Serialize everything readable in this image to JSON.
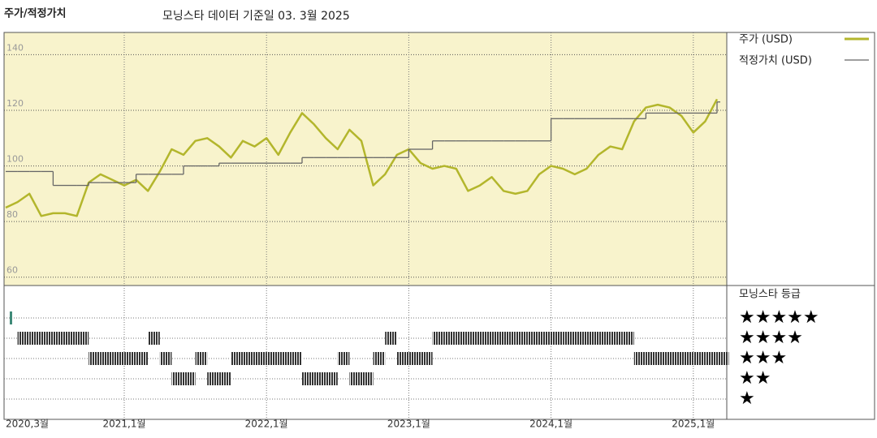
{
  "chart_data": [
    {
      "type": "line",
      "title": "주가/적정가치",
      "subtitle": "모닝스타 데이터 기준일 03. 3월 2025",
      "x": [
        "2020-03",
        "2020-04",
        "2020-05",
        "2020-06",
        "2020-07",
        "2020-08",
        "2020-09",
        "2020-10",
        "2020-11",
        "2020-12",
        "2021-01",
        "2021-02",
        "2021-03",
        "2021-04",
        "2021-05",
        "2021-06",
        "2021-07",
        "2021-08",
        "2021-09",
        "2021-10",
        "2021-11",
        "2021-12",
        "2022-01",
        "2022-02",
        "2022-03",
        "2022-04",
        "2022-05",
        "2022-06",
        "2022-07",
        "2022-08",
        "2022-09",
        "2022-10",
        "2022-11",
        "2022-12",
        "2023-01",
        "2023-02",
        "2023-03",
        "2023-04",
        "2023-05",
        "2023-06",
        "2023-07",
        "2023-08",
        "2023-09",
        "2023-10",
        "2023-11",
        "2023-12",
        "2024-01",
        "2024-02",
        "2024-03",
        "2024-04",
        "2024-05",
        "2024-06",
        "2024-07",
        "2024-08",
        "2024-09",
        "2024-10",
        "2024-11",
        "2024-12",
        "2025-01",
        "2025-02",
        "2025-03"
      ],
      "series": [
        {
          "name": "주가 (USD)",
          "color": "#b3b62c",
          "values": [
            85,
            87,
            90,
            82,
            83,
            83,
            82,
            94,
            97,
            95,
            93,
            95,
            91,
            98,
            106,
            104,
            109,
            110,
            107,
            103,
            109,
            107,
            110,
            104,
            112,
            119,
            115,
            110,
            106,
            113,
            109,
            93,
            97,
            104,
            106,
            101,
            99,
            100,
            99,
            91,
            93,
            96,
            91,
            90,
            91,
            97,
            100,
            99,
            97,
            99,
            104,
            107,
            106,
            116,
            121,
            122,
            121,
            118,
            112,
            116,
            124
          ]
        },
        {
          "name": "적정가치 (USD)",
          "color": "#666666",
          "step": true,
          "values": [
            98,
            98,
            98,
            98,
            93,
            93,
            93,
            94,
            94,
            94,
            94,
            97,
            97,
            97,
            97,
            100,
            100,
            100,
            101,
            101,
            101,
            101,
            101,
            101,
            101,
            103,
            103,
            103,
            103,
            103,
            103,
            103,
            103,
            103,
            106,
            106,
            109,
            109,
            109,
            109,
            109,
            109,
            109,
            109,
            109,
            109,
            117,
            117,
            117,
            117,
            117,
            117,
            117,
            117,
            119,
            119,
            119,
            119,
            119,
            119,
            123
          ]
        }
      ],
      "ylim": [
        57,
        148
      ],
      "yticks": [
        60,
        80,
        100,
        120,
        140
      ],
      "xticks": [
        {
          "value": "2020-03",
          "label": "2020,3월"
        },
        {
          "value": "2021-01",
          "label": "2021,1월"
        },
        {
          "value": "2022-01",
          "label": "2022,1월"
        },
        {
          "value": "2023-01",
          "label": "2023,1월"
        },
        {
          "value": "2024-01",
          "label": "2024,1월"
        },
        {
          "value": "2025-01",
          "label": "2025,1월"
        }
      ],
      "grid": true,
      "background": "#f8f3cc"
    },
    {
      "type": "rating",
      "title": "모닝스타 등급",
      "levels": [
        "★★★★★",
        "★★★★",
        "★★★",
        "★★",
        "★"
      ],
      "values": [
        5,
        4,
        4,
        4,
        4,
        4,
        4,
        3,
        3,
        3,
        3,
        3,
        4,
        3,
        2,
        2,
        3,
        2,
        2,
        3,
        3,
        3,
        3,
        3,
        3,
        2,
        2,
        2,
        3,
        2,
        2,
        3,
        4,
        3,
        3,
        3,
        4,
        4,
        4,
        4,
        4,
        4,
        4,
        4,
        4,
        4,
        4,
        4,
        4,
        4,
        4,
        4,
        4,
        3,
        3,
        3,
        3,
        3,
        3,
        3,
        3
      ],
      "color": "#333333",
      "top_color": "#3f8a78"
    }
  ]
}
